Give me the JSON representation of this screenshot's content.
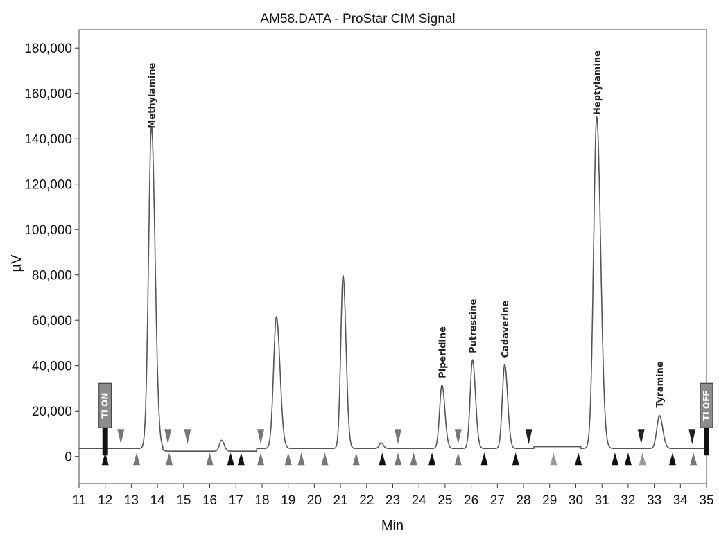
{
  "chart_data": {
    "type": "line",
    "title": "AM58.DATA - ProStar CIM Signal",
    "xlabel": "Min",
    "ylabel": "µV",
    "xlim": [
      11,
      35
    ],
    "ylim": [
      -12000,
      188000
    ],
    "x_ticks": [
      11,
      12,
      13,
      14,
      15,
      16,
      17,
      18,
      19,
      20,
      21,
      22,
      23,
      24,
      25,
      26,
      27,
      28,
      29,
      30,
      31,
      32,
      33,
      34,
      35
    ],
    "x_tick_labels": [
      "11",
      "12",
      "13",
      "14",
      "15",
      "16",
      "17",
      "18",
      "19",
      "20",
      "21",
      "22",
      "23",
      "24",
      "25",
      "26",
      "27",
      "28",
      "29",
      "30",
      "31",
      "32",
      "33",
      "34",
      "35"
    ],
    "y_ticks": [
      0,
      20000,
      40000,
      60000,
      80000,
      100000,
      120000,
      140000,
      160000,
      180000
    ],
    "y_tick_labels": [
      "0",
      "20,000",
      "40,000",
      "60,000",
      "80,000",
      "100,000",
      "120,000",
      "140,000",
      "160,000",
      "180,000"
    ],
    "grid": false,
    "baseline": 3500,
    "line_color": "#555555",
    "series": [
      {
        "peaks": [
          {
            "t": 13.77,
            "h": 142000,
            "w": 0.11
          },
          {
            "t": 16.45,
            "h": 4800,
            "w": 0.08
          },
          {
            "t": 18.55,
            "h": 58000,
            "w": 0.11
          },
          {
            "t": 21.1,
            "h": 76000,
            "w": 0.09
          },
          {
            "t": 22.55,
            "h": 2500,
            "w": 0.07
          },
          {
            "t": 24.88,
            "h": 28000,
            "w": 0.09
          },
          {
            "t": 26.05,
            "h": 39000,
            "w": 0.09
          },
          {
            "t": 27.28,
            "h": 37000,
            "w": 0.09
          },
          {
            "t": 30.8,
            "h": 146000,
            "w": 0.12
          },
          {
            "t": 33.2,
            "h": 14500,
            "w": 0.1
          }
        ]
      }
    ],
    "annotations": [
      {
        "label": "Methylamine",
        "x": 13.77,
        "y": 142000,
        "rotate": -90
      },
      {
        "label": "Piperidine",
        "x": 24.88,
        "y": 32000,
        "rotate": -90
      },
      {
        "label": "Putrescine",
        "x": 26.05,
        "y": 43000,
        "rotate": -90
      },
      {
        "label": "Cadaverine",
        "x": 27.28,
        "y": 41000,
        "rotate": -90
      },
      {
        "label": "Heptylamine",
        "x": 30.8,
        "y": 148000,
        "rotate": -90
      },
      {
        "label": "Tyramine",
        "x": 33.2,
        "y": 19000,
        "rotate": -90
      }
    ],
    "events": [
      {
        "label": "TI ON",
        "x": 12.0
      },
      {
        "label": "TI OFF",
        "x": 35.0
      }
    ],
    "markers_down": [
      {
        "x": 12.6,
        "color": "#777777"
      },
      {
        "x": 14.4,
        "color": "#777777"
      },
      {
        "x": 15.15,
        "color": "#777777"
      },
      {
        "x": 17.95,
        "color": "#777777"
      },
      {
        "x": 23.2,
        "color": "#777777"
      },
      {
        "x": 25.5,
        "color": "#777777"
      },
      {
        "x": 28.2,
        "color": "#222222"
      },
      {
        "x": 32.5,
        "color": "#222222"
      },
      {
        "x": 34.45,
        "color": "#222222"
      }
    ],
    "markers_up": [
      {
        "x": 12.0,
        "color": "#111111"
      },
      {
        "x": 13.2,
        "color": "#777777"
      },
      {
        "x": 14.45,
        "color": "#777777"
      },
      {
        "x": 16.0,
        "color": "#777777"
      },
      {
        "x": 16.8,
        "color": "#111111"
      },
      {
        "x": 17.2,
        "color": "#111111"
      },
      {
        "x": 17.95,
        "color": "#777777"
      },
      {
        "x": 19.0,
        "color": "#777777"
      },
      {
        "x": 19.5,
        "color": "#777777"
      },
      {
        "x": 20.4,
        "color": "#777777"
      },
      {
        "x": 21.6,
        "color": "#777777"
      },
      {
        "x": 22.6,
        "color": "#111111"
      },
      {
        "x": 23.2,
        "color": "#777777"
      },
      {
        "x": 23.8,
        "color": "#777777"
      },
      {
        "x": 24.5,
        "color": "#111111"
      },
      {
        "x": 25.5,
        "color": "#777777"
      },
      {
        "x": 26.5,
        "color": "#111111"
      },
      {
        "x": 27.7,
        "color": "#111111"
      },
      {
        "x": 29.15,
        "color": "#999999"
      },
      {
        "x": 30.1,
        "color": "#111111"
      },
      {
        "x": 31.5,
        "color": "#111111"
      },
      {
        "x": 32.0,
        "color": "#111111"
      },
      {
        "x": 32.55,
        "color": "#999999"
      },
      {
        "x": 33.7,
        "color": "#111111"
      },
      {
        "x": 34.5,
        "color": "#777777"
      }
    ]
  }
}
